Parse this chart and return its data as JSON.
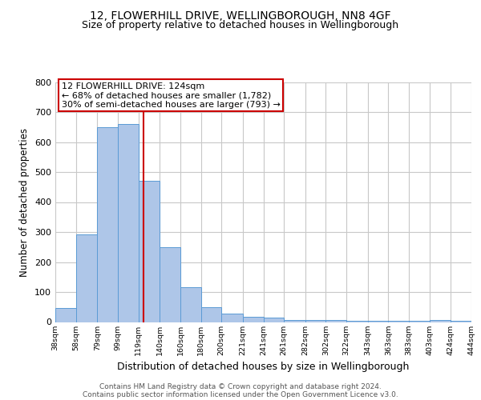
{
  "title1": "12, FLOWERHILL DRIVE, WELLINGBOROUGH, NN8 4GF",
  "title2": "Size of property relative to detached houses in Wellingborough",
  "xlabel": "Distribution of detached houses by size in Wellingborough",
  "ylabel": "Number of detached properties",
  "bin_labels": [
    "38sqm",
    "58sqm",
    "79sqm",
    "99sqm",
    "119sqm",
    "140sqm",
    "160sqm",
    "180sqm",
    "200sqm",
    "221sqm",
    "241sqm",
    "261sqm",
    "282sqm",
    "302sqm",
    "322sqm",
    "343sqm",
    "363sqm",
    "383sqm",
    "403sqm",
    "424sqm",
    "444sqm"
  ],
  "bar_heights": [
    47,
    293,
    650,
    660,
    470,
    250,
    115,
    50,
    28,
    17,
    15,
    8,
    7,
    6,
    5,
    5,
    5,
    5,
    8,
    5,
    0
  ],
  "bar_color": "#aec6e8",
  "bar_edge_color": "#5b9bd5",
  "red_line_x": 124,
  "bin_edges": [
    38,
    58,
    79,
    99,
    119,
    140,
    160,
    180,
    200,
    221,
    241,
    261,
    282,
    302,
    322,
    343,
    363,
    383,
    403,
    424,
    444
  ],
  "ylim": [
    0,
    800
  ],
  "yticks": [
    0,
    100,
    200,
    300,
    400,
    500,
    600,
    700,
    800
  ],
  "annotation_line1": "12 FLOWERHILL DRIVE: 124sqm",
  "annotation_line2": "← 68% of detached houses are smaller (1,782)",
  "annotation_line3": "30% of semi-detached houses are larger (793) →",
  "annotation_box_color": "#ffffff",
  "annotation_box_edge_color": "#cc0000",
  "red_line_color": "#cc0000",
  "footer1": "Contains HM Land Registry data © Crown copyright and database right 2024.",
  "footer2": "Contains public sector information licensed under the Open Government Licence v3.0.",
  "bg_color": "#ffffff",
  "grid_color": "#c8c8c8"
}
